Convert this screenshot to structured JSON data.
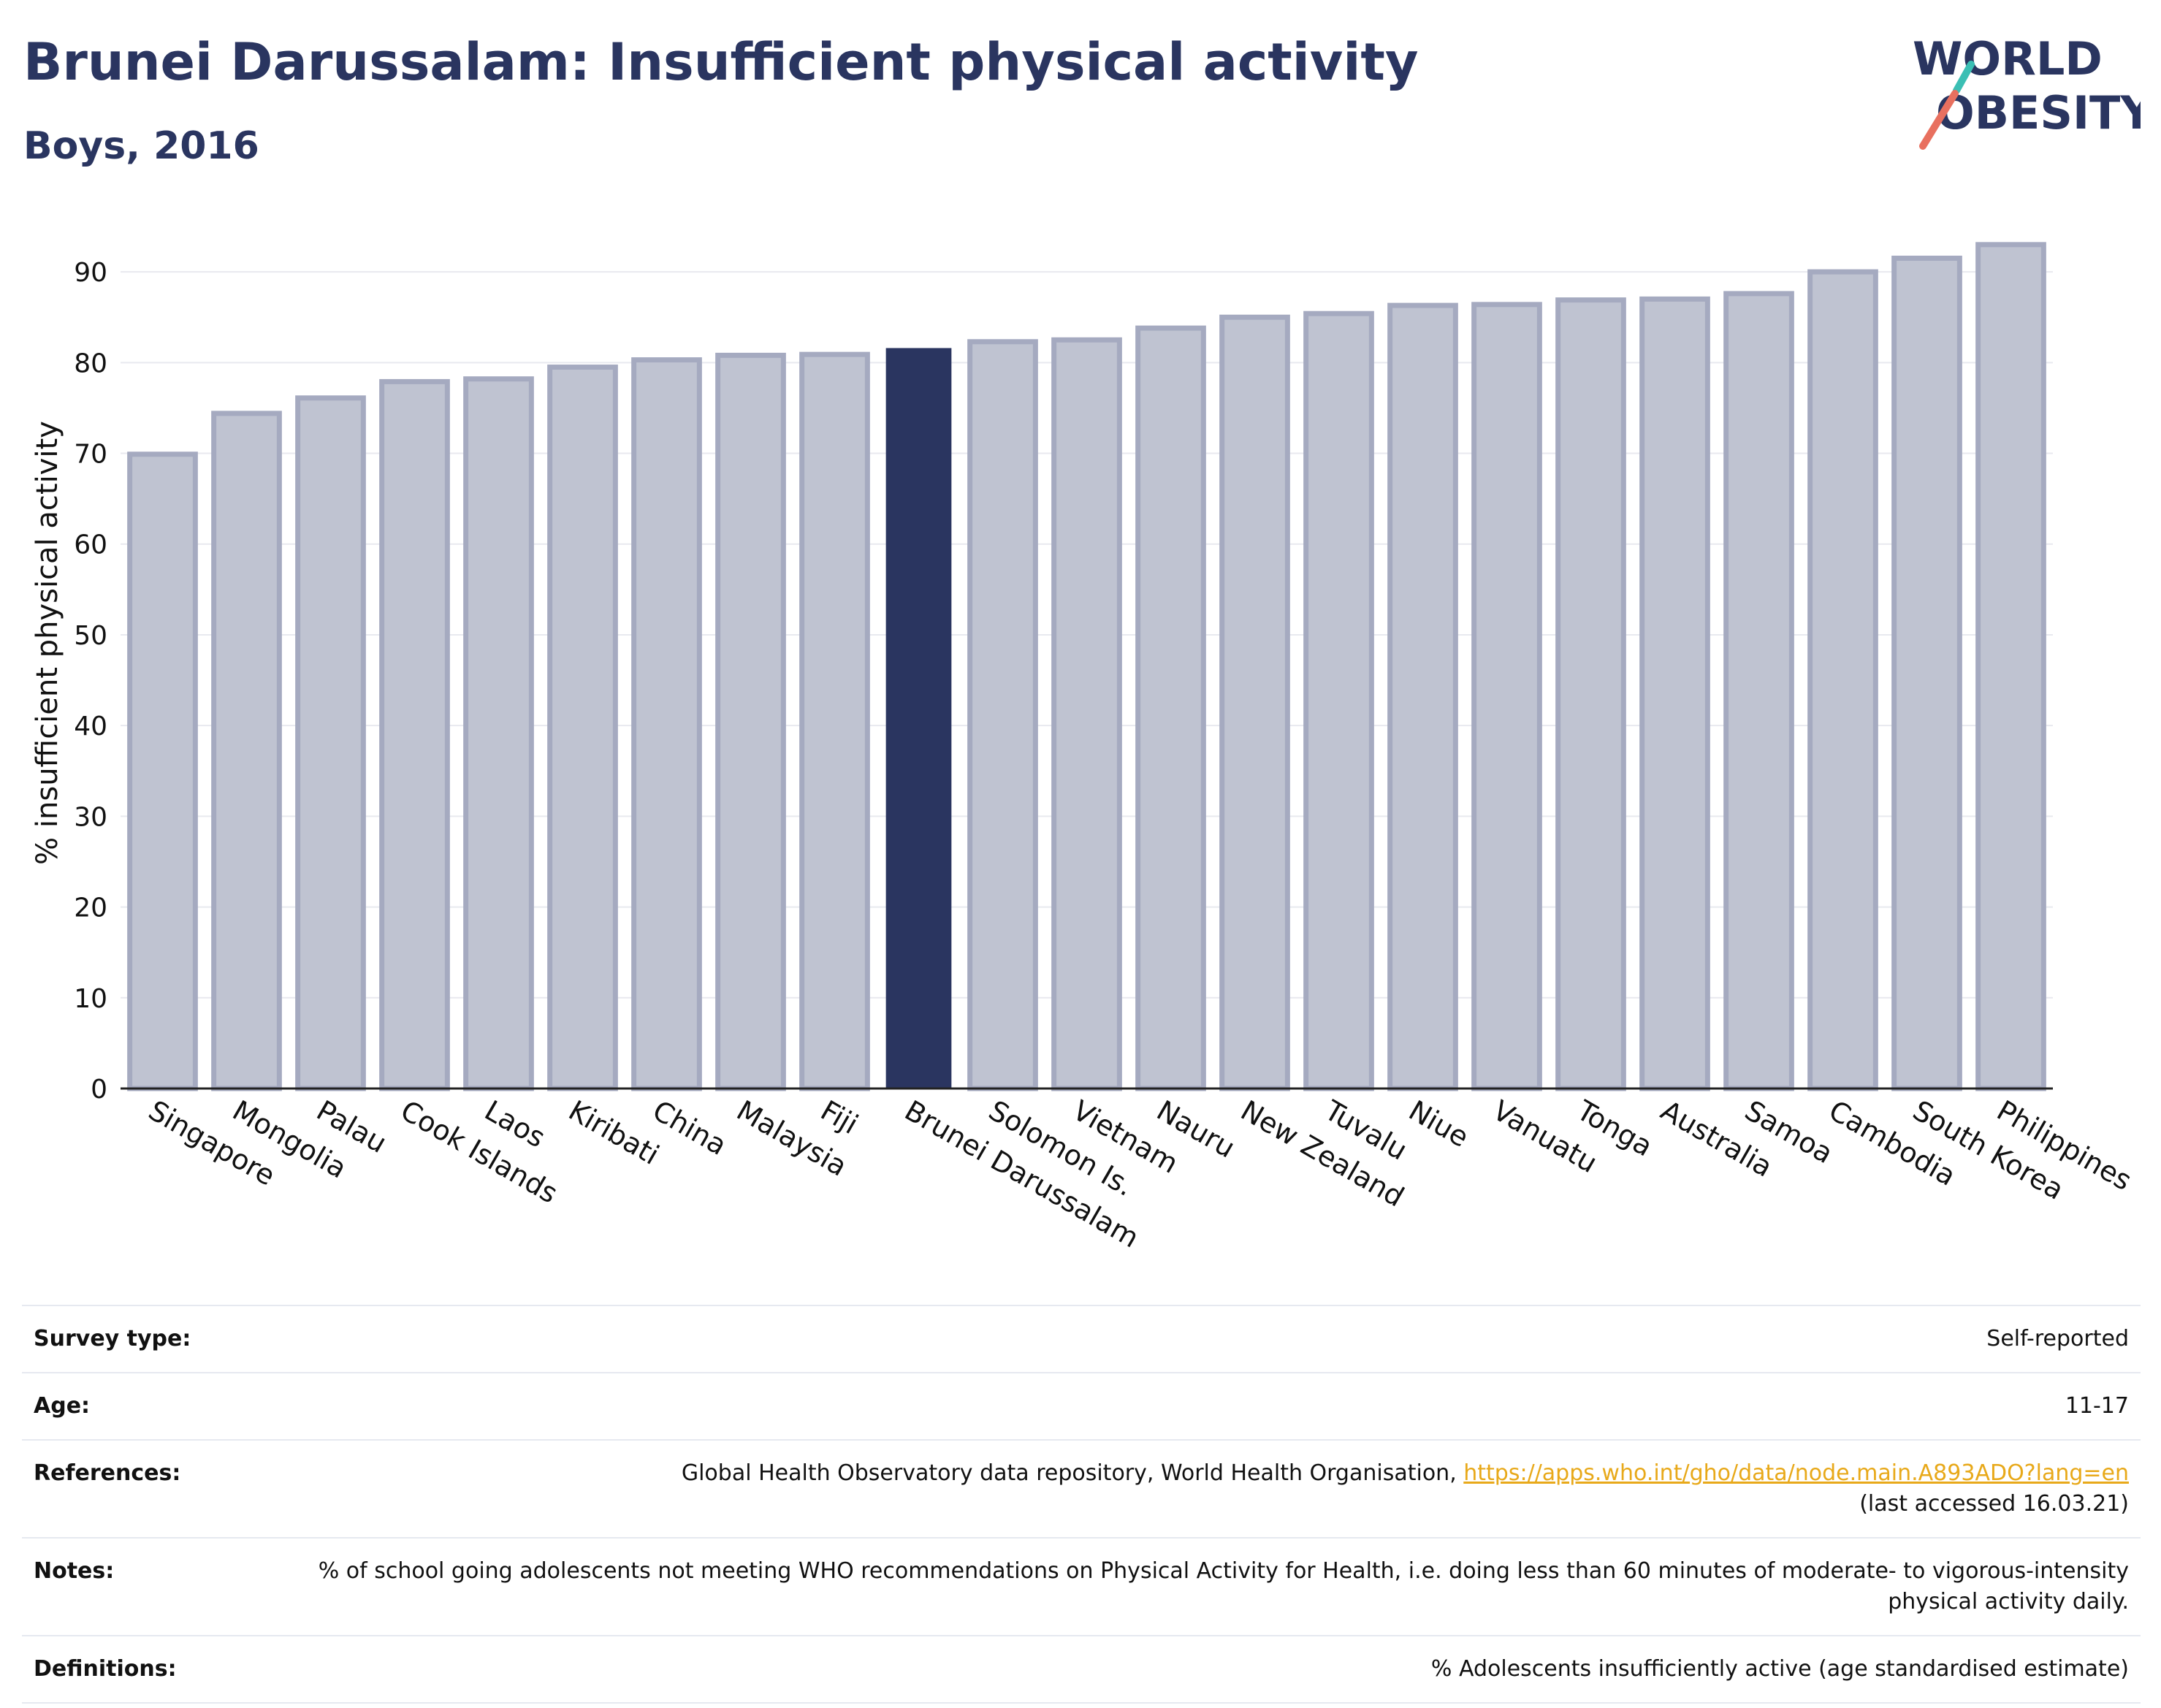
{
  "header": {
    "title": "Brunei Darussalam: Insufficient physical activity",
    "subtitle": "Boys, 2016"
  },
  "logo": {
    "line1": "WORLD",
    "line2": "OBESITY",
    "colors": {
      "text": "#2a3560",
      "slash_teal": "#3bbfb4",
      "slash_coral": "#e8705f"
    }
  },
  "colors": {
    "highlight_bar": "#2a3560",
    "other_bar_fill": "#bfc3d1",
    "other_bar_edge": "#a5aac0",
    "grid": "#e8e9ef",
    "link": "#e8a91a"
  },
  "chart_data": {
    "type": "bar",
    "title": "",
    "xlabel": "",
    "ylabel": "% insufficient physical activity",
    "ylim": [
      0,
      95
    ],
    "yticks": [
      0,
      10,
      20,
      30,
      40,
      50,
      60,
      70,
      80,
      90
    ],
    "grid": true,
    "highlight": "Brunei Darussalam",
    "categories": [
      "Singapore",
      "Mongolia",
      "Palau",
      "Cook Islands",
      "Laos",
      "Kiribati",
      "China",
      "Malaysia",
      "Fiji",
      "Brunei Darussalam",
      "Solomon Is.",
      "Vietnam",
      "Nauru",
      "New Zealand",
      "Tuvalu",
      "Niue",
      "Vanuatu",
      "Tonga",
      "Australia",
      "Samoa",
      "Cambodia",
      "South Korea",
      "Philippines"
    ],
    "values": [
      69.9,
      74.4,
      76.1,
      77.9,
      78.2,
      79.5,
      80.3,
      80.8,
      80.9,
      81.6,
      82.3,
      82.5,
      83.8,
      85.0,
      85.4,
      86.3,
      86.4,
      86.9,
      87.0,
      87.6,
      90.0,
      91.5,
      93.0
    ]
  },
  "info": {
    "survey_type_label": "Survey type:",
    "survey_type_value": "Self-reported",
    "age_label": "Age:",
    "age_value": "11-17",
    "references_label": "References:",
    "references_text": "Global Health Observatory data repository, World Health Organisation, ",
    "references_link": "https://apps.who.int/gho/data/node.main.A893ADO?lang=en",
    "references_accessed": "(last accessed 16.03.21)",
    "notes_label": "Notes:",
    "notes_value": "% of school going adolescents not meeting WHO recommendations on Physical Activity for Health, i.e. doing less than 60 minutes of moderate- to vigorous-intensity physical activity daily.",
    "definitions_label": "Definitions:",
    "definitions_value": "% Adolescents insufficiently active (age standardised estimate)"
  }
}
